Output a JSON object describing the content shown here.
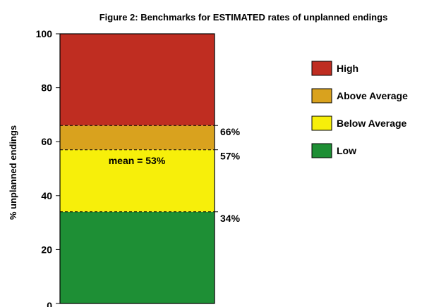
{
  "chart_data": {
    "type": "bar",
    "title": "Figure 2: Benchmarks for ESTIMATED rates of unplanned endings",
    "ylabel": "% unplanned endings",
    "xlabel": "",
    "ylim": [
      0,
      100
    ],
    "yticks": [
      0,
      20,
      40,
      60,
      80,
      100
    ],
    "grid": false,
    "legend_position": "right",
    "bands": [
      {
        "name": "Low",
        "from": 0,
        "to": 34,
        "color": "#1e8f35"
      },
      {
        "name": "Below Average",
        "from": 34,
        "to": 57,
        "color": "#f7ef0a"
      },
      {
        "name": "Above Average",
        "from": 57,
        "to": 66,
        "color": "#d9a21e"
      },
      {
        "name": "High",
        "from": 66,
        "to": 100,
        "color": "#bf2d21"
      }
    ],
    "thresholds": [
      {
        "value": 66,
        "label": "66%"
      },
      {
        "value": 57,
        "label": "57%"
      },
      {
        "value": 34,
        "label": "34%"
      }
    ],
    "annotation": {
      "text": "mean = 53%",
      "value": 53
    },
    "legend": [
      {
        "label": "High",
        "color": "#bf2d21"
      },
      {
        "label": "Above Average",
        "color": "#d9a21e"
      },
      {
        "label": "Below Average",
        "color": "#f7ef0a"
      },
      {
        "label": "Low",
        "color": "#1e8f35"
      }
    ]
  }
}
